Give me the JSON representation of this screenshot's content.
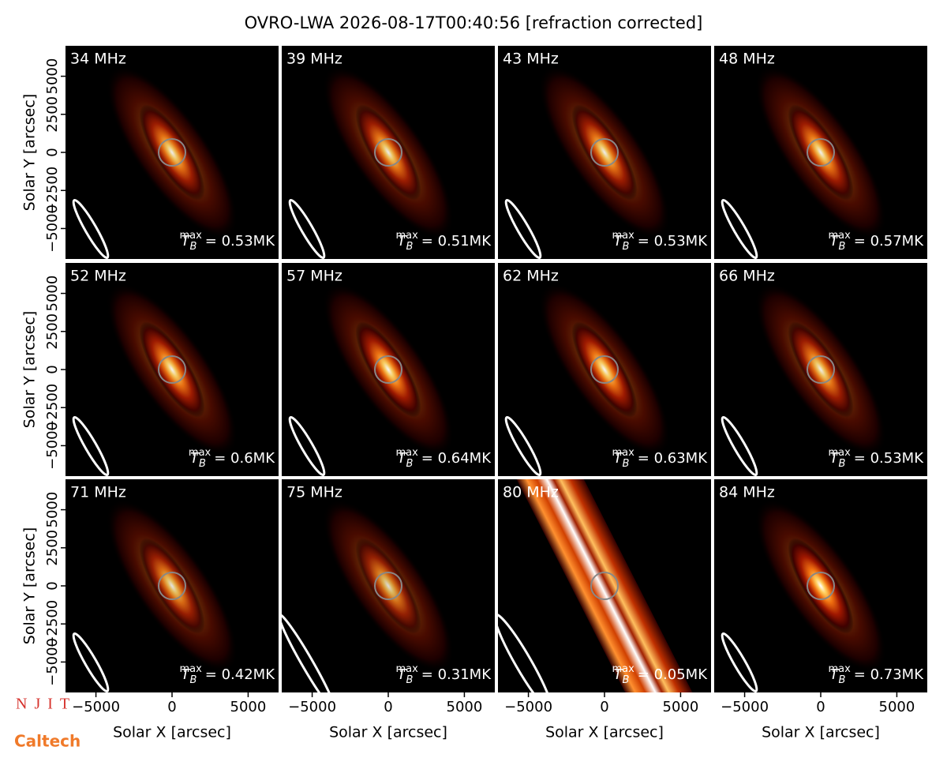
{
  "title": "OVRO-LWA 2026-08-17T00:40:56 [refraction corrected]",
  "axes": {
    "xlabel": "Solar X [arcsec]",
    "ylabel": "Solar Y [arcsec]",
    "xlim": [
      -7000,
      7000
    ],
    "ylim": [
      -7000,
      7000
    ],
    "xticks": [
      {
        "value": -5000,
        "label": "−5000"
      },
      0,
      5000
    ],
    "yticks": [
      {
        "value": -5000,
        "label": "−5000"
      },
      {
        "value": -2500,
        "label": "−2500"
      },
      0,
      2500,
      5000
    ],
    "annotation_symbol": "T",
    "annotation_sub": "B",
    "annotation_sup": "max"
  },
  "logos": {
    "top": "NJIT",
    "bottom": "Caltech"
  },
  "chart_data": [
    {
      "type": "image",
      "title": "34 MHz",
      "value": 0.53,
      "value_label": "= 0.53MK"
    },
    {
      "type": "image",
      "title": "39 MHz",
      "value": 0.51,
      "value_label": "= 0.51MK"
    },
    {
      "type": "image",
      "title": "43 MHz",
      "value": 0.53,
      "value_label": "= 0.53MK"
    },
    {
      "type": "image",
      "title": "48 MHz",
      "value": 0.57,
      "value_label": "= 0.57MK"
    },
    {
      "type": "image",
      "title": "52 MHz",
      "value": 0.6,
      "value_label": "= 0.6MK"
    },
    {
      "type": "image",
      "title": "57 MHz",
      "value": 0.64,
      "value_label": "= 0.64MK"
    },
    {
      "type": "image",
      "title": "62 MHz",
      "value": 0.63,
      "value_label": "= 0.63MK"
    },
    {
      "type": "image",
      "title": "66 MHz",
      "value": 0.53,
      "value_label": "= 0.53MK"
    },
    {
      "type": "image",
      "title": "71 MHz",
      "value": 0.42,
      "value_label": "= 0.42MK"
    },
    {
      "type": "image",
      "title": "75 MHz",
      "value": 0.31,
      "value_label": "= 0.31MK"
    },
    {
      "type": "image",
      "title": "80 MHz",
      "value": 0.05,
      "value_label": "= 0.05MK"
    },
    {
      "type": "image",
      "title": "84 MHz",
      "value": 0.73,
      "value_label": "= 0.73MK"
    }
  ]
}
